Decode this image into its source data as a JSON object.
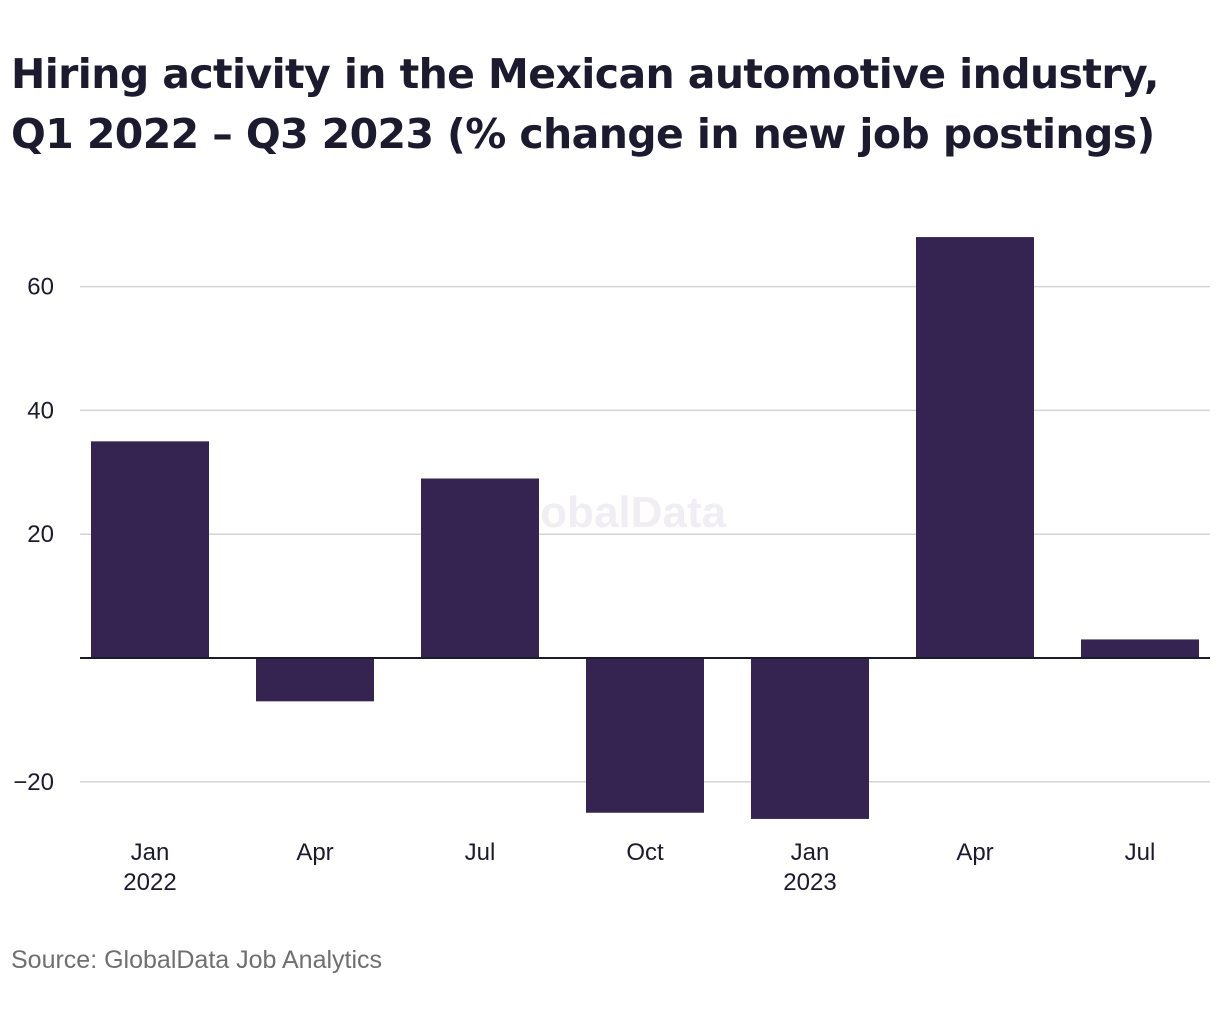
{
  "chart_data": {
    "type": "bar",
    "title_lines": [
      "Hiring activity in the Mexican automotive industry,",
      "Q1 2022 – Q3 2023 (% change in new job postings)"
    ],
    "categories": [
      "Jan 2022",
      "Apr 2022",
      "Jul 2022",
      "Oct 2022",
      "Jan 2023",
      "Apr 2023",
      "Jul 2023"
    ],
    "tick_labels": [
      {
        "month": "Jan",
        "year": "2022"
      },
      {
        "month": "Apr",
        "year": ""
      },
      {
        "month": "Jul",
        "year": ""
      },
      {
        "month": "Oct",
        "year": ""
      },
      {
        "month": "Jan",
        "year": "2023"
      },
      {
        "month": "Apr",
        "year": ""
      },
      {
        "month": "Jul",
        "year": ""
      }
    ],
    "values": [
      35,
      -7,
      29,
      -25,
      -26,
      68,
      3
    ],
    "ylim": [
      -26,
      68
    ],
    "yticks": [
      -20,
      20,
      40,
      60
    ],
    "ytick_labels": [
      "−20",
      "20",
      "40",
      "60"
    ],
    "grid": true,
    "bar_color": "#352452",
    "xlabel": "",
    "ylabel": ""
  },
  "watermark": "GlobalData",
  "source": "Source: GlobalData Job Analytics"
}
